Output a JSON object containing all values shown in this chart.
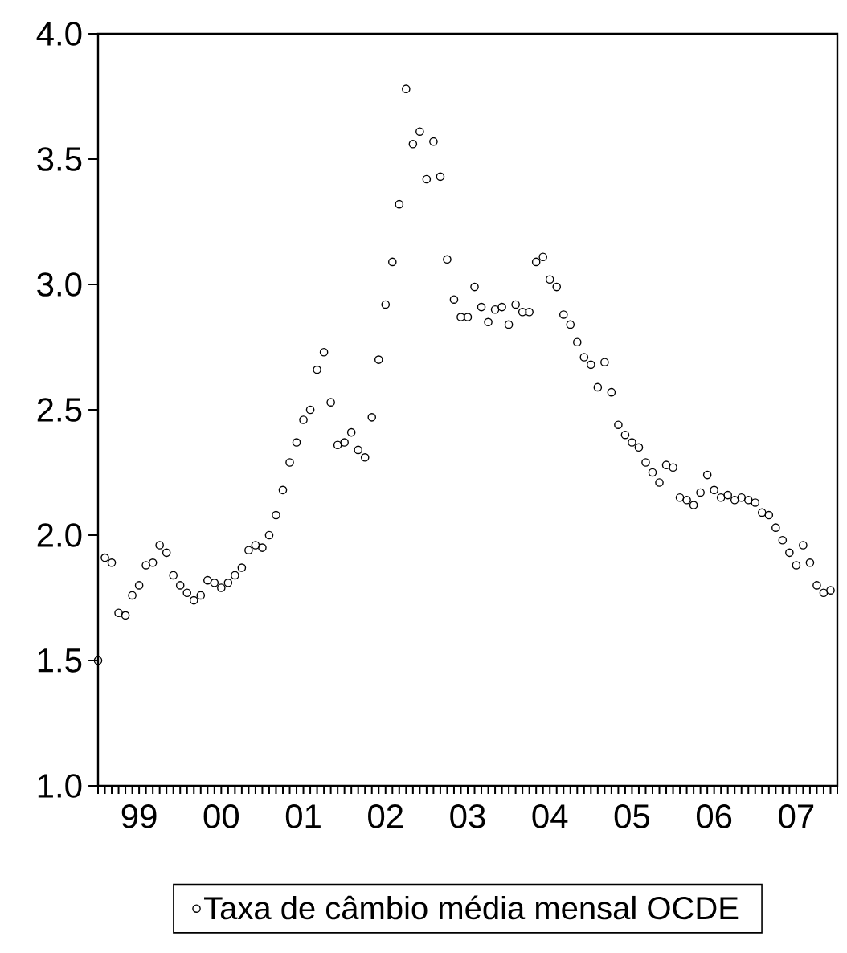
{
  "chart_data": {
    "type": "scatter",
    "x": [
      "1999-01",
      "1999-02",
      "1999-03",
      "1999-04",
      "1999-05",
      "1999-06",
      "1999-07",
      "1999-08",
      "1999-09",
      "1999-10",
      "1999-11",
      "1999-12",
      "2000-01",
      "2000-02",
      "2000-03",
      "2000-04",
      "2000-05",
      "2000-06",
      "2000-07",
      "2000-08",
      "2000-09",
      "2000-10",
      "2000-11",
      "2000-12",
      "2001-01",
      "2001-02",
      "2001-03",
      "2001-04",
      "2001-05",
      "2001-06",
      "2001-07",
      "2001-08",
      "2001-09",
      "2001-10",
      "2001-11",
      "2001-12",
      "2002-01",
      "2002-02",
      "2002-03",
      "2002-04",
      "2002-05",
      "2002-06",
      "2002-07",
      "2002-08",
      "2002-09",
      "2002-10",
      "2002-11",
      "2002-12",
      "2003-01",
      "2003-02",
      "2003-03",
      "2003-04",
      "2003-05",
      "2003-06",
      "2003-07",
      "2003-08",
      "2003-09",
      "2003-10",
      "2003-11",
      "2003-12",
      "2004-01",
      "2004-02",
      "2004-03",
      "2004-04",
      "2004-05",
      "2004-06",
      "2004-07",
      "2004-08",
      "2004-09",
      "2004-10",
      "2004-11",
      "2004-12",
      "2005-01",
      "2005-02",
      "2005-03",
      "2005-04",
      "2005-05",
      "2005-06",
      "2005-07",
      "2005-08",
      "2005-09",
      "2005-10",
      "2005-11",
      "2005-12",
      "2006-01",
      "2006-02",
      "2006-03",
      "2006-04",
      "2006-05",
      "2006-06",
      "2006-07",
      "2006-08",
      "2006-09",
      "2006-10",
      "2006-11",
      "2006-12",
      "2007-01",
      "2007-02",
      "2007-03",
      "2007-04",
      "2007-05",
      "2007-06",
      "2007-07",
      "2007-08",
      "2007-09",
      "2007-10",
      "2007-11",
      "2007-12"
    ],
    "series": [
      {
        "name": "Taxa de câmbio média mensal OCDE",
        "color": "#000000",
        "values": [
          1.5,
          1.91,
          1.89,
          1.69,
          1.68,
          1.76,
          1.8,
          1.88,
          1.89,
          1.96,
          1.93,
          1.84,
          1.8,
          1.77,
          1.74,
          1.76,
          1.82,
          1.81,
          1.79,
          1.81,
          1.84,
          1.87,
          1.94,
          1.96,
          1.95,
          2.0,
          2.08,
          2.18,
          2.29,
          2.37,
          2.46,
          2.5,
          2.66,
          2.73,
          2.53,
          2.36,
          2.37,
          2.41,
          2.34,
          2.31,
          2.47,
          2.7,
          2.92,
          3.09,
          3.32,
          3.78,
          3.56,
          3.61,
          3.42,
          3.57,
          3.43,
          3.1,
          2.94,
          2.87,
          2.87,
          2.99,
          2.91,
          2.85,
          2.9,
          2.91,
          2.84,
          2.92,
          2.89,
          2.89,
          3.09,
          3.11,
          3.02,
          2.99,
          2.88,
          2.84,
          2.77,
          2.71,
          2.68,
          2.59,
          2.69,
          2.57,
          2.44,
          2.4,
          2.37,
          2.35,
          2.29,
          2.25,
          2.21,
          2.28,
          2.27,
          2.15,
          2.14,
          2.12,
          2.17,
          2.24,
          2.18,
          2.15,
          2.16,
          2.14,
          2.15,
          2.14,
          2.13,
          2.09,
          2.08,
          2.03,
          1.98,
          1.93,
          1.88,
          1.96,
          1.89,
          1.8,
          1.77,
          1.78
        ]
      }
    ],
    "marker": "circle",
    "legend": "bottom",
    "xlim": [
      "1999-01",
      "2008-01"
    ],
    "xticks": [
      {
        "value": "1999-01",
        "label": null
      },
      {
        "value": "1999-07",
        "label": "99"
      },
      {
        "value": "2000-01",
        "label": null
      },
      {
        "value": "2000-07",
        "label": "00"
      },
      {
        "value": "2001-01",
        "label": null
      },
      {
        "value": "2001-07",
        "label": "01"
      },
      {
        "value": "2002-01",
        "label": null
      },
      {
        "value": "2002-07",
        "label": "02"
      },
      {
        "value": "2003-01",
        "label": null
      },
      {
        "value": "2003-07",
        "label": "03"
      },
      {
        "value": "2004-01",
        "label": null
      },
      {
        "value": "2004-07",
        "label": "04"
      },
      {
        "value": "2005-01",
        "label": null
      },
      {
        "value": "2005-07",
        "label": "05"
      },
      {
        "value": "2006-01",
        "label": null
      },
      {
        "value": "2006-07",
        "label": "06"
      },
      {
        "value": "2007-01",
        "label": null
      },
      {
        "value": "2007-07",
        "label": "07"
      }
    ],
    "ylim": [
      1.0,
      4.0
    ],
    "yticks": [
      {
        "value": 1.0,
        "label": "1.0"
      },
      {
        "value": 1.5,
        "label": "1.5"
      },
      {
        "value": 2.0,
        "label": "2.0"
      },
      {
        "value": 2.5,
        "label": "2.5"
      },
      {
        "value": 3.0,
        "label": "3.0"
      },
      {
        "value": 3.5,
        "label": "3.5"
      },
      {
        "value": 4.0,
        "label": "4.0"
      }
    ]
  }
}
